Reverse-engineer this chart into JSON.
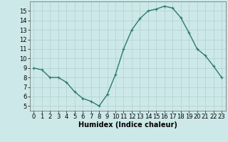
{
  "x": [
    0,
    1,
    2,
    3,
    4,
    5,
    6,
    7,
    8,
    9,
    10,
    11,
    12,
    13,
    14,
    15,
    16,
    17,
    18,
    19,
    20,
    21,
    22,
    23
  ],
  "y": [
    9,
    8.8,
    8,
    8,
    7.5,
    6.5,
    5.8,
    5.5,
    5,
    6.2,
    8.3,
    11,
    13,
    14.2,
    15,
    15.2,
    15.5,
    15.3,
    14.3,
    12.7,
    11,
    10.3,
    9.2,
    8
  ],
  "line_color": "#2d7a6e",
  "marker": "+",
  "marker_size": 3,
  "line_width": 1.0,
  "bg_color": "#cde8e8",
  "grid_color": "#b0d0d0",
  "xlabel": "Humidex (Indice chaleur)",
  "xlabel_fontsize": 7,
  "tick_fontsize": 6,
  "xlim": [
    -0.5,
    23.5
  ],
  "ylim": [
    4.5,
    16.0
  ],
  "yticks": [
    5,
    6,
    7,
    8,
    9,
    10,
    11,
    12,
    13,
    14,
    15
  ],
  "xticks": [
    0,
    1,
    2,
    3,
    4,
    5,
    6,
    7,
    8,
    9,
    10,
    11,
    12,
    13,
    14,
    15,
    16,
    17,
    18,
    19,
    20,
    21,
    22,
    23
  ]
}
